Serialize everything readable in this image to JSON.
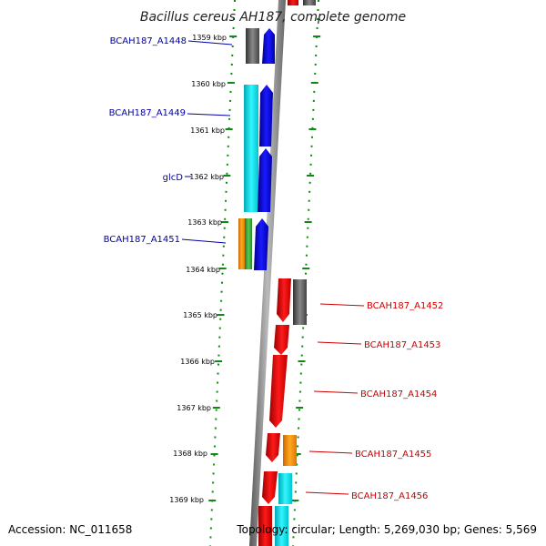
{
  "title": "Bacillus cereus AH187, complete genome",
  "accession": "Accession: NC_011658",
  "topology": "Topology: circular; Length: 5,269,030 bp; Genes: 5,569",
  "ticks": [
    "1359 kbp",
    "1360 kbp",
    "1361 kbp",
    "1362 kbp",
    "1363 kbp",
    "1364 kbp",
    "1365 kbp",
    "1366 kbp",
    "1367 kbp",
    "1368 kbp",
    "1369 kbp"
  ],
  "left_genes": [
    "BCAH187_A1448",
    "BCAH187_A1449",
    "glcD",
    "BCAH187_A1451"
  ],
  "right_genes": [
    "BCAH187_A1452",
    "BCAH187_A1453",
    "BCAH187_A1454",
    "BCAH187_A1455",
    "BCAH187_A1456"
  ],
  "colors": {
    "forward": "#0000ee",
    "reverse": "#ee0000",
    "label_left": "#0000aa",
    "label_right": "#cc0000",
    "cyan": "#00e5ee",
    "grey": "#666666",
    "orange": "#ff9900",
    "green": "#33aa33",
    "tick_dots": "#118811"
  }
}
